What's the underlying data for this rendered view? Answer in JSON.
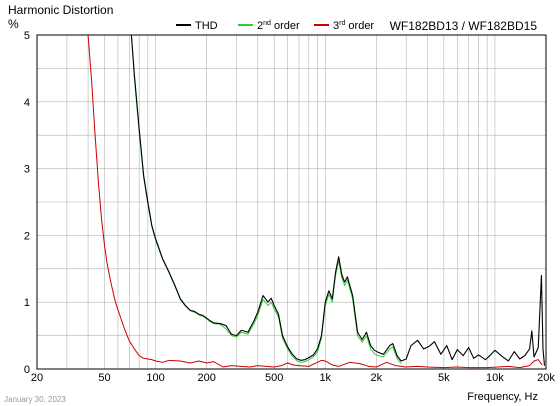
{
  "chart_data": {
    "type": "line",
    "title": "Harmonic Distortion",
    "ylabel": "%",
    "xlabel": "Frequency, Hz",
    "model": "WF182BD13 / WF182BD15",
    "date": "January 30, 2023",
    "xscale": "log",
    "xlim": [
      20,
      20000
    ],
    "ylim": [
      0,
      5
    ],
    "grid": true,
    "legend_position": "top",
    "x_ticks": [
      {
        "value": 20,
        "label": "20"
      },
      {
        "value": 50,
        "label": "50"
      },
      {
        "value": 100,
        "label": "100"
      },
      {
        "value": 200,
        "label": "200"
      },
      {
        "value": 500,
        "label": "500"
      },
      {
        "value": 1000,
        "label": "1k"
      },
      {
        "value": 2000,
        "label": "2k"
      },
      {
        "value": 5000,
        "label": "5k"
      },
      {
        "value": 10000,
        "label": "10k"
      },
      {
        "value": 20000,
        "label": "20k"
      }
    ],
    "y_ticks": [
      {
        "value": 0,
        "label": "0"
      },
      {
        "value": 1,
        "label": "1"
      },
      {
        "value": 2,
        "label": "2"
      },
      {
        "value": 3,
        "label": "3"
      },
      {
        "value": 4,
        "label": "4"
      },
      {
        "value": 5,
        "label": "5"
      }
    ],
    "series": [
      {
        "name": "THD",
        "label_base": "THD",
        "label_sup": "",
        "label_tail": "",
        "color": "#000000",
        "points": [
          [
            72,
            5
          ],
          [
            75,
            4.4
          ],
          [
            80,
            3.6
          ],
          [
            85,
            2.9
          ],
          [
            90,
            2.5
          ],
          [
            95,
            2.15
          ],
          [
            100,
            1.95
          ],
          [
            110,
            1.65
          ],
          [
            120,
            1.45
          ],
          [
            130,
            1.25
          ],
          [
            140,
            1.05
          ],
          [
            150,
            0.95
          ],
          [
            160,
            0.88
          ],
          [
            170,
            0.86
          ],
          [
            180,
            0.82
          ],
          [
            190,
            0.8
          ],
          [
            200,
            0.76
          ],
          [
            210,
            0.72
          ],
          [
            220,
            0.69
          ],
          [
            240,
            0.68
          ],
          [
            260,
            0.65
          ],
          [
            280,
            0.52
          ],
          [
            300,
            0.5
          ],
          [
            320,
            0.58
          ],
          [
            350,
            0.55
          ],
          [
            380,
            0.72
          ],
          [
            400,
            0.85
          ],
          [
            430,
            1.1
          ],
          [
            460,
            1.0
          ],
          [
            480,
            1.06
          ],
          [
            500,
            0.95
          ],
          [
            530,
            0.82
          ],
          [
            560,
            0.5
          ],
          [
            600,
            0.33
          ],
          [
            640,
            0.22
          ],
          [
            680,
            0.15
          ],
          [
            720,
            0.13
          ],
          [
            760,
            0.14
          ],
          [
            800,
            0.17
          ],
          [
            850,
            0.21
          ],
          [
            900,
            0.3
          ],
          [
            950,
            0.5
          ],
          [
            1000,
            1.0
          ],
          [
            1050,
            1.17
          ],
          [
            1100,
            1.05
          ],
          [
            1150,
            1.45
          ],
          [
            1200,
            1.68
          ],
          [
            1250,
            1.42
          ],
          [
            1300,
            1.3
          ],
          [
            1350,
            1.38
          ],
          [
            1450,
            1.1
          ],
          [
            1550,
            0.55
          ],
          [
            1650,
            0.44
          ],
          [
            1750,
            0.55
          ],
          [
            1850,
            0.35
          ],
          [
            1950,
            0.28
          ],
          [
            2050,
            0.25
          ],
          [
            2200,
            0.22
          ],
          [
            2400,
            0.35
          ],
          [
            2500,
            0.38
          ],
          [
            2650,
            0.2
          ],
          [
            2800,
            0.12
          ],
          [
            3000,
            0.15
          ],
          [
            3200,
            0.35
          ],
          [
            3500,
            0.43
          ],
          [
            3800,
            0.3
          ],
          [
            4100,
            0.34
          ],
          [
            4400,
            0.41
          ],
          [
            4800,
            0.22
          ],
          [
            5200,
            0.35
          ],
          [
            5600,
            0.14
          ],
          [
            6000,
            0.29
          ],
          [
            6500,
            0.2
          ],
          [
            7000,
            0.32
          ],
          [
            7500,
            0.16
          ],
          [
            8000,
            0.21
          ],
          [
            8800,
            0.14
          ],
          [
            9500,
            0.22
          ],
          [
            10000,
            0.28
          ],
          [
            11000,
            0.19
          ],
          [
            12000,
            0.12
          ],
          [
            13000,
            0.26
          ],
          [
            14000,
            0.15
          ],
          [
            15000,
            0.2
          ],
          [
            16000,
            0.3
          ],
          [
            16500,
            0.57
          ],
          [
            17000,
            0.18
          ],
          [
            18000,
            0.32
          ],
          [
            18800,
            1.4
          ],
          [
            19200,
            0.3
          ],
          [
            19600,
            0.05
          ]
        ]
      },
      {
        "name": "2nd order",
        "label_base": "2",
        "label_sup": "nd",
        "label_tail": " order",
        "color": "#33cc33",
        "points": [
          [
            72,
            5
          ],
          [
            75,
            4.35
          ],
          [
            80,
            3.55
          ],
          [
            85,
            2.87
          ],
          [
            90,
            2.47
          ],
          [
            95,
            2.13
          ],
          [
            100,
            1.93
          ],
          [
            110,
            1.64
          ],
          [
            120,
            1.44
          ],
          [
            130,
            1.24
          ],
          [
            140,
            1.04
          ],
          [
            150,
            0.94
          ],
          [
            160,
            0.87
          ],
          [
            170,
            0.85
          ],
          [
            180,
            0.81
          ],
          [
            190,
            0.79
          ],
          [
            200,
            0.75
          ],
          [
            210,
            0.71
          ],
          [
            220,
            0.68
          ],
          [
            240,
            0.67
          ],
          [
            260,
            0.6
          ],
          [
            280,
            0.5
          ],
          [
            300,
            0.48
          ],
          [
            320,
            0.55
          ],
          [
            350,
            0.52
          ],
          [
            380,
            0.68
          ],
          [
            400,
            0.8
          ],
          [
            430,
            1.04
          ],
          [
            460,
            0.95
          ],
          [
            480,
            1.0
          ],
          [
            500,
            0.9
          ],
          [
            530,
            0.78
          ],
          [
            560,
            0.46
          ],
          [
            600,
            0.3
          ],
          [
            640,
            0.19
          ],
          [
            680,
            0.12
          ],
          [
            720,
            0.1
          ],
          [
            760,
            0.11
          ],
          [
            800,
            0.14
          ],
          [
            850,
            0.18
          ],
          [
            900,
            0.26
          ],
          [
            950,
            0.46
          ],
          [
            1000,
            0.95
          ],
          [
            1050,
            1.12
          ],
          [
            1100,
            1.0
          ],
          [
            1150,
            1.4
          ],
          [
            1200,
            1.62
          ],
          [
            1250,
            1.37
          ],
          [
            1300,
            1.25
          ],
          [
            1350,
            1.33
          ],
          [
            1450,
            1.05
          ],
          [
            1550,
            0.5
          ],
          [
            1650,
            0.4
          ],
          [
            1750,
            0.5
          ],
          [
            1850,
            0.3
          ],
          [
            1950,
            0.23
          ],
          [
            2050,
            0.2
          ],
          [
            2200,
            0.18
          ],
          [
            2400,
            0.3
          ],
          [
            2500,
            0.33
          ],
          [
            2650,
            0.16
          ],
          [
            2800,
            0.08
          ]
        ]
      },
      {
        "name": "3rd order",
        "label_base": "3",
        "label_sup": "rd",
        "label_tail": " order",
        "color": "#cc0000",
        "points": [
          [
            40,
            5
          ],
          [
            42,
            4.3
          ],
          [
            44,
            3.5
          ],
          [
            46,
            2.8
          ],
          [
            48,
            2.25
          ],
          [
            50,
            1.85
          ],
          [
            52,
            1.55
          ],
          [
            55,
            1.25
          ],
          [
            58,
            1.0
          ],
          [
            62,
            0.78
          ],
          [
            66,
            0.58
          ],
          [
            70,
            0.42
          ],
          [
            75,
            0.3
          ],
          [
            80,
            0.2
          ],
          [
            85,
            0.16
          ],
          [
            90,
            0.15
          ],
          [
            95,
            0.14
          ],
          [
            100,
            0.12
          ],
          [
            110,
            0.1
          ],
          [
            120,
            0.13
          ],
          [
            140,
            0.12
          ],
          [
            160,
            0.09
          ],
          [
            180,
            0.12
          ],
          [
            200,
            0.09
          ],
          [
            220,
            0.11
          ],
          [
            250,
            0.03
          ],
          [
            280,
            0.05
          ],
          [
            320,
            0.04
          ],
          [
            360,
            0.03
          ],
          [
            400,
            0.05
          ],
          [
            450,
            0.04
          ],
          [
            500,
            0.03
          ],
          [
            550,
            0.05
          ],
          [
            600,
            0.09
          ],
          [
            650,
            0.06
          ],
          [
            700,
            0.05
          ],
          [
            800,
            0.04
          ],
          [
            900,
            0.1
          ],
          [
            950,
            0.13
          ],
          [
            1000,
            0.12
          ],
          [
            1100,
            0.06
          ],
          [
            1200,
            0.04
          ],
          [
            1400,
            0.1
          ],
          [
            1600,
            0.08
          ],
          [
            1800,
            0.04
          ],
          [
            2000,
            0.03
          ],
          [
            2300,
            0.1
          ],
          [
            2600,
            0.05
          ],
          [
            3000,
            0.03
          ],
          [
            3500,
            0.04
          ],
          [
            4000,
            0.03
          ],
          [
            5000,
            0.02
          ],
          [
            6000,
            0.03
          ],
          [
            7000,
            0.02
          ],
          [
            9000,
            0.02
          ],
          [
            12000,
            0.04
          ],
          [
            14000,
            0.02
          ],
          [
            16000,
            0.05
          ],
          [
            17000,
            0.12
          ],
          [
            18000,
            0.14
          ],
          [
            19000,
            0.06
          ]
        ]
      }
    ]
  }
}
